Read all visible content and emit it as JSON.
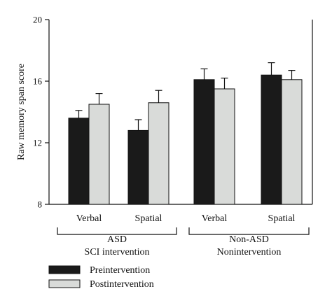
{
  "chart_data": {
    "type": "bar",
    "ylabel": "Raw memory span score",
    "ylim": [
      8,
      20
    ],
    "yticks": [
      "8",
      "12",
      "16",
      "20"
    ],
    "categories": [
      "Verbal",
      "Spatial",
      "Verbal",
      "Spatial"
    ],
    "groups": [
      {
        "label": "ASD",
        "sublabel": "SCI intervention",
        "categories": [
          0,
          1
        ]
      },
      {
        "label": "Non-ASD",
        "sublabel": "Nonintervention",
        "categories": [
          2,
          3
        ]
      }
    ],
    "series": [
      {
        "name": "Preintervention",
        "color": "#1a1a1a",
        "values": [
          13.6,
          12.8,
          16.1,
          16.4
        ],
        "errors": [
          0.5,
          0.7,
          0.7,
          0.8
        ]
      },
      {
        "name": "Postintervention",
        "color": "#d9dbd9",
        "values": [
          14.5,
          14.6,
          15.5,
          16.1
        ],
        "errors": [
          0.7,
          0.8,
          0.7,
          0.6
        ]
      }
    ],
    "legend_position": "bottom-left",
    "grid": false
  }
}
